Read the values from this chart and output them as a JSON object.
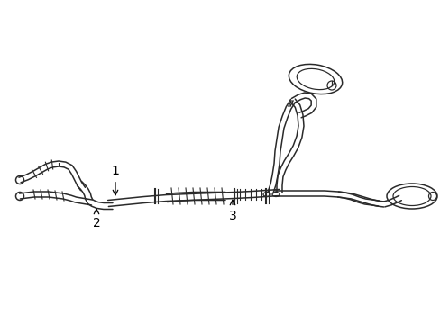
{
  "bg_color": "#ffffff",
  "line_color": "#2a2a2a",
  "line_width": 1.1,
  "label_color": "#000000",
  "figsize": [
    4.89,
    3.6
  ],
  "dpi": 100,
  "xlim": [
    0,
    489
  ],
  "ylim": [
    0,
    360
  ]
}
